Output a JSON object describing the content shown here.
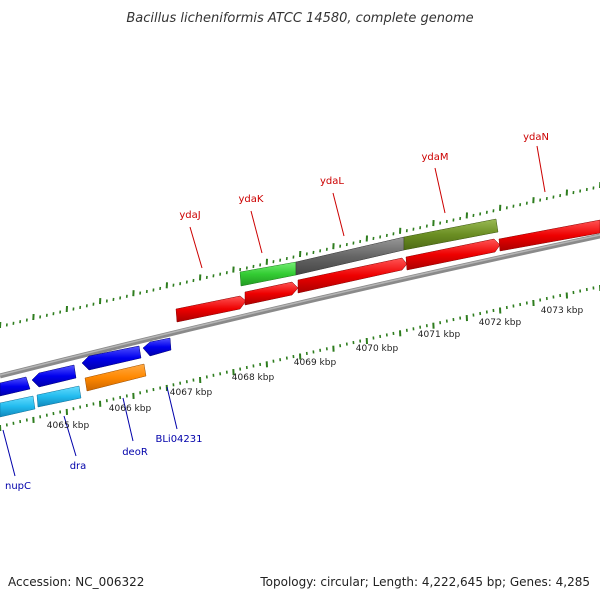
{
  "title": "Bacillus licheniformis ATCC 14580, complete genome",
  "footer": {
    "accession": "Accession: NC_006322",
    "summary": "Topology: circular; Length: 4,222,645 bp; Genes: 4,285"
  },
  "colors": {
    "backbone": "#8a8a8a",
    "tick": "#2e7d1e",
    "forward_label": "#cc0000",
    "reverse_label": "#0000aa"
  },
  "ticks": [
    {
      "label": "4065 kbp"
    },
    {
      "label": "4066 kbp"
    },
    {
      "label": "4067 kbp"
    },
    {
      "label": "4068 kbp"
    },
    {
      "label": "4069 kbp"
    },
    {
      "label": "4070 kbp"
    },
    {
      "label": "4071 kbp"
    },
    {
      "label": "4072 kbp"
    },
    {
      "label": "4073 kbp"
    }
  ],
  "forward_genes": [
    {
      "label": "ydaJ",
      "color": "#ee0000"
    },
    {
      "label": "ydaK",
      "color": "#ee0000"
    },
    {
      "label": "ydaL",
      "color": "#ee0000"
    },
    {
      "label": "ydaM",
      "color": "#ee0000"
    },
    {
      "label": "ydaN",
      "color": "#ee0000"
    }
  ],
  "forward_features_outer": [
    {
      "name": "green",
      "color": "#33cc33"
    },
    {
      "name": "gray",
      "color": "#666666"
    },
    {
      "name": "olive",
      "color": "#6b8e23"
    }
  ],
  "reverse_genes": [
    {
      "label": "nupC",
      "color": "#0000ee"
    },
    {
      "label": "dra",
      "color": "#0000ee"
    },
    {
      "label": "deoR",
      "color": "#0000ee"
    },
    {
      "label": "BLi04231",
      "color": "#0000ee"
    }
  ],
  "reverse_features_inner": [
    {
      "name": "cyan-a",
      "color": "#22bbee"
    },
    {
      "name": "cyan-b",
      "color": "#22bbee"
    },
    {
      "name": "orange",
      "color": "#ff8800"
    }
  ]
}
